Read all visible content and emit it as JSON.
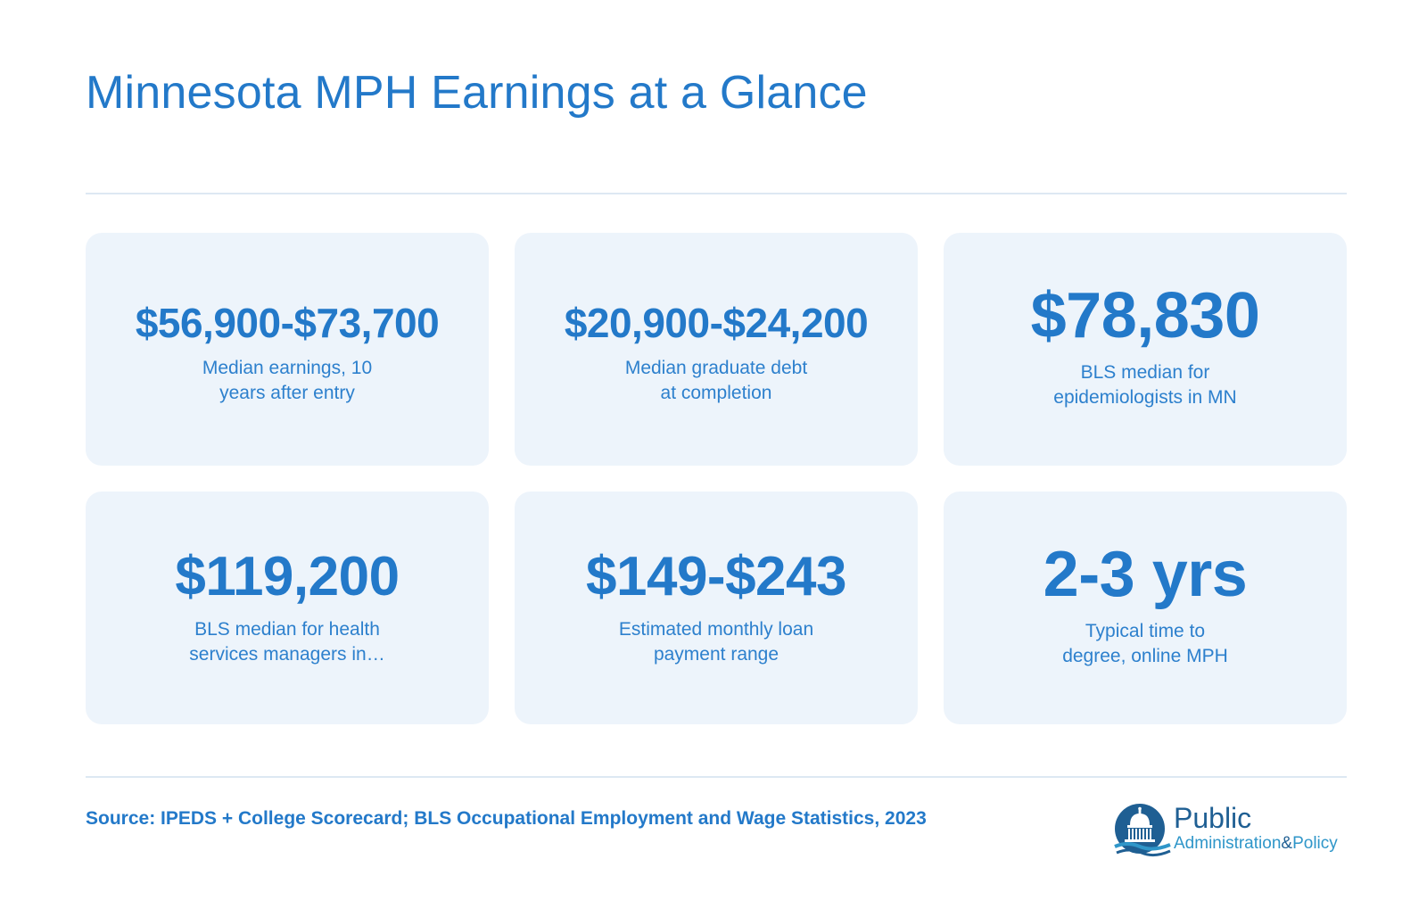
{
  "title": "Minnesota MPH Earnings at a Glance",
  "cards": [
    {
      "value": "$56,900-$73,700",
      "label_line1": "Median earnings, 10",
      "label_line2": "years after entry"
    },
    {
      "value": "$20,900-$24,200",
      "label_line1": "Median graduate debt",
      "label_line2": "at completion"
    },
    {
      "value": "$78,830",
      "label_line1": "BLS median for",
      "label_line2": "epidemiologists in MN"
    },
    {
      "value": "$119,200",
      "label_line1": "BLS median for health",
      "label_line2": "services managers in…"
    },
    {
      "value": "$149-$243",
      "label_line1": "Estimated monthly loan",
      "label_line2": "payment range"
    },
    {
      "value": "2-3 yrs",
      "label_line1": "Typical time to",
      "label_line2": "degree, online MPH"
    }
  ],
  "source": "Source: IPEDS + College Scorecard; BLS Occupational Employment and Wage Statistics, 2023",
  "logo": {
    "word_primary": "Public",
    "word_secondary": "Administration",
    "word_amp": "&",
    "word_tertiary": "Policy",
    "icon": "capitol-dome-icon"
  },
  "colors": {
    "accent": "#2379c9",
    "card_background": "#edf4fb",
    "divider": "#dde8f3",
    "logo_dark": "#1f5f93",
    "logo_light": "#2f96c9"
  }
}
